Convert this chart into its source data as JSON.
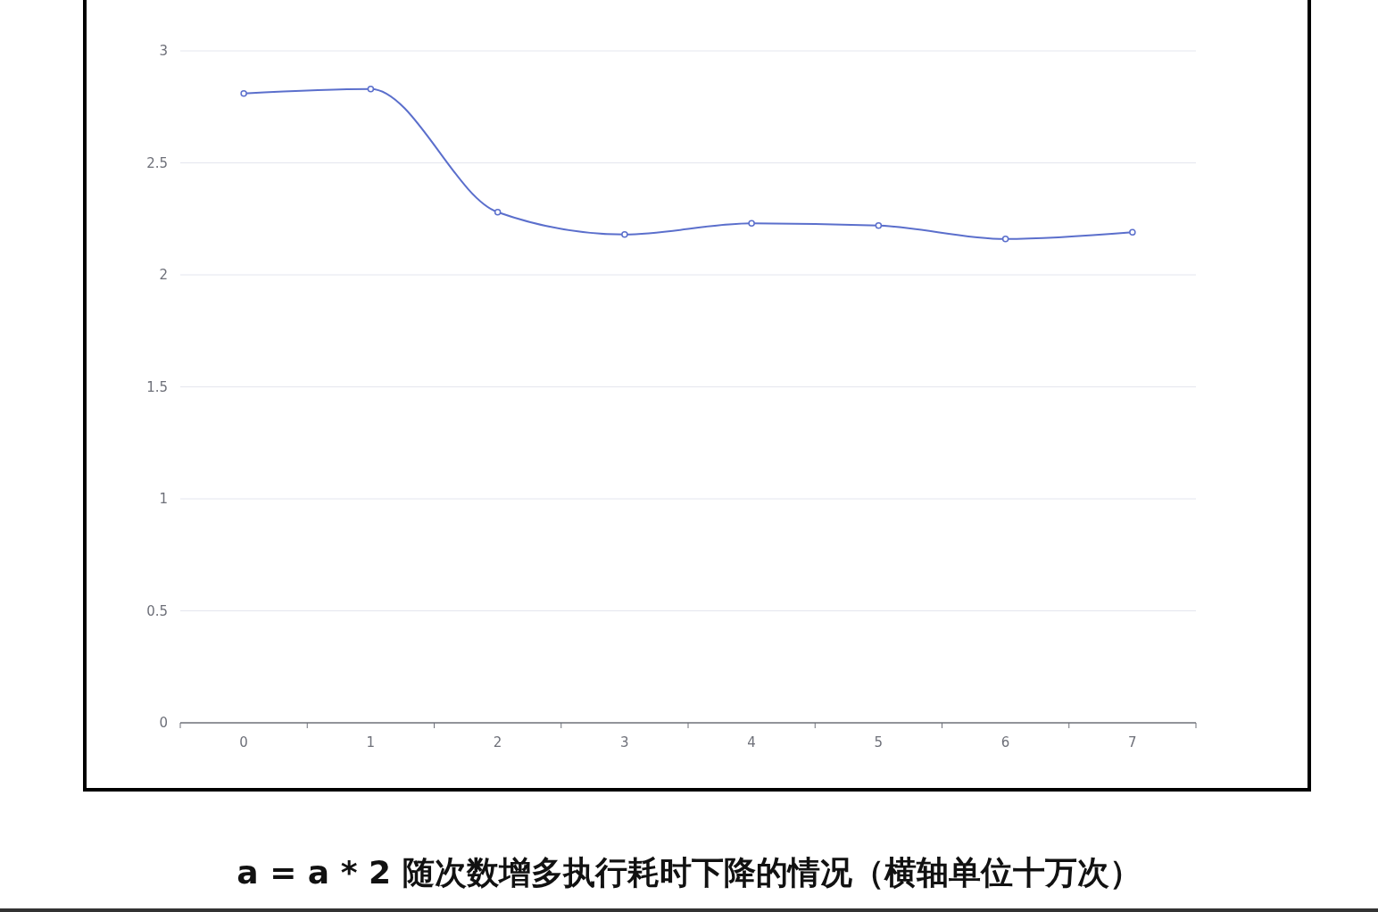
{
  "chart_data": {
    "type": "line",
    "title": "a = a * 2 随次数增多执行耗时下降的情况（横轴单位十万次）",
    "categories": [
      "0",
      "1",
      "2",
      "3",
      "4",
      "5",
      "6",
      "7"
    ],
    "series": [
      {
        "color": "#5b6fcc",
        "values": [
          2.81,
          2.83,
          2.28,
          2.18,
          2.23,
          2.22,
          2.16,
          2.19
        ]
      }
    ],
    "ylim": [
      0,
      3
    ],
    "yticks": [
      0,
      0.5,
      1,
      1.5,
      2,
      2.5,
      3
    ],
    "grid": "y",
    "marker": "circle",
    "line_style": "solid"
  }
}
